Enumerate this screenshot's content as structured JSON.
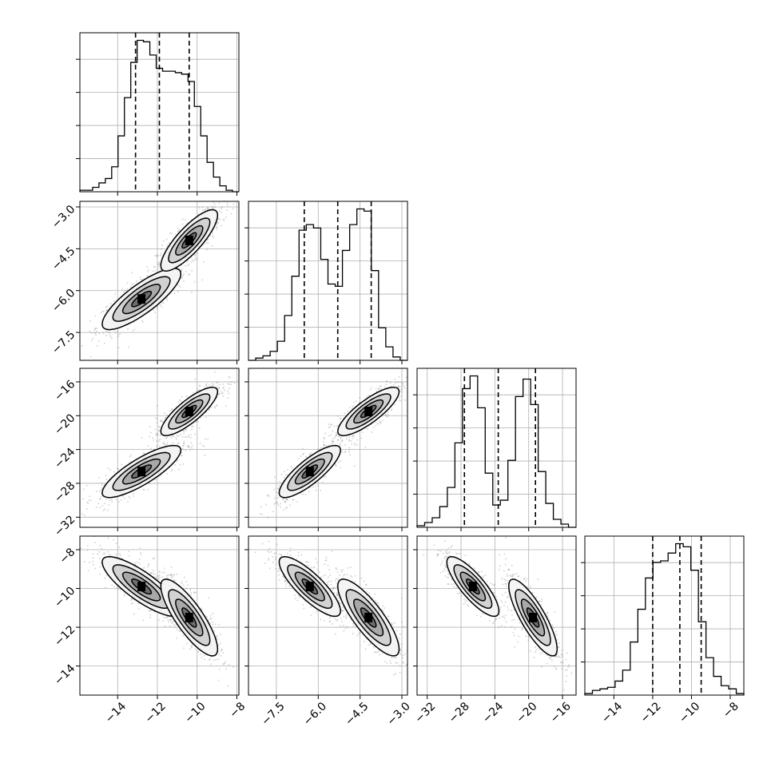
{
  "chart_data": {
    "type": "corner",
    "grid": true,
    "parameters": [
      {
        "ticks": [
          -14,
          -12,
          -10,
          -8
        ],
        "tick_labels": [
          "−14",
          "−12",
          "−10",
          "−8"
        ],
        "range": [
          -15.9,
          -7.9
        ],
        "quantiles": [
          -13.1,
          -11.9,
          -10.4
        ],
        "modes": [
          [
            -12.8,
            0.9
          ],
          [
            -10.4,
            0.65
          ]
        ]
      },
      {
        "ticks": [
          -7.5,
          -6.0,
          -4.5,
          -3.0
        ],
        "tick_labels": [
          "−7.5",
          "−6.0",
          "−4.5",
          "−3.0"
        ],
        "range": [
          -8.5,
          -2.8
        ],
        "quantiles": [
          -6.5,
          -5.3,
          -4.1
        ],
        "modes": [
          [
            -6.3,
            0.5
          ],
          [
            -4.2,
            0.5
          ]
        ]
      },
      {
        "ticks": [
          -32,
          -28,
          -24,
          -20,
          -16
        ],
        "tick_labels": [
          "−32",
          "−28",
          "−24",
          "−20",
          "−16"
        ],
        "range": [
          -33.2,
          -14.4
        ],
        "quantiles": [
          -27.6,
          -23.6,
          -19.2
        ],
        "modes": [
          [
            -26.6,
            1.4
          ],
          [
            -19.5,
            1.3
          ]
        ]
      },
      {
        "ticks": [
          -14,
          -12,
          -10,
          -8
        ],
        "tick_labels": [
          "−14",
          "−12",
          "−10",
          "−8"
        ],
        "range": [
          -15.5,
          -7.3
        ],
        "quantiles": [
          -12.0,
          -10.6,
          -9.5
        ],
        "modes": [
          [
            -9.9,
            0.7
          ],
          [
            -11.5,
            0.9
          ]
        ]
      }
    ],
    "histograms": [
      {
        "counts": [
          1,
          1,
          3,
          6,
          9,
          17,
          38,
          64,
          88,
          103,
          102,
          93,
          84,
          82,
          82,
          81,
          80,
          75,
          58,
          38,
          20,
          10,
          4,
          1,
          0
        ]
      },
      {
        "counts": [
          0,
          2,
          4,
          8,
          17,
          40,
          75,
          116,
          121,
          118,
          90,
          68,
          66,
          98,
          121,
          135,
          133,
          80,
          29,
          12,
          3,
          0
        ]
      },
      {
        "counts": [
          1,
          3,
          6,
          13,
          25,
          53,
          87,
          95,
          75,
          34,
          14,
          17,
          42,
          82,
          93,
          77,
          35,
          15,
          5,
          2,
          0
        ]
      },
      {
        "counts": [
          1,
          3,
          4,
          5,
          9,
          16,
          34,
          55,
          75,
          85,
          86,
          91,
          97,
          95,
          80,
          47,
          24,
          12,
          6,
          4,
          1
        ]
      }
    ],
    "pairs": [
      {
        "row": 1,
        "col": 0
      },
      {
        "row": 2,
        "col": 0
      },
      {
        "row": 2,
        "col": 1
      },
      {
        "row": 3,
        "col": 0
      },
      {
        "row": 3,
        "col": 1
      },
      {
        "row": 3,
        "col": 2
      }
    ]
  }
}
